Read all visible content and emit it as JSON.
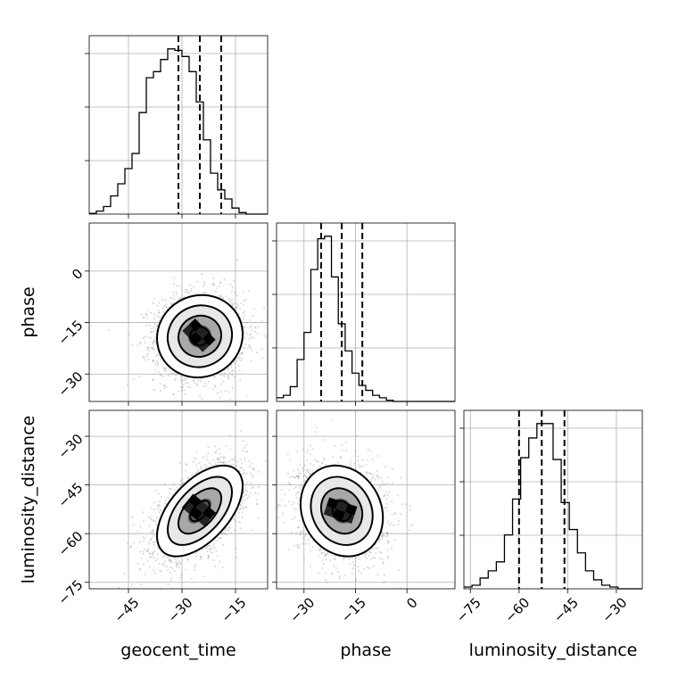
{
  "chart_data": {
    "type": "corner",
    "parameters": [
      {
        "key": "geocent_time",
        "label": "geocent_time",
        "range": [
          -56,
          -6
        ],
        "ticks": [
          -45,
          -30,
          -15
        ],
        "quantiles": [
          -31,
          -25,
          -19
        ],
        "hist_bin_width": 2,
        "hist_counts": [
          0.5,
          2,
          5,
          12,
          20,
          30,
          40,
          67,
          90,
          94,
          102,
          109,
          108,
          104,
          94,
          74,
          49,
          27,
          16,
          10,
          4,
          1,
          0,
          0,
          0
        ]
      },
      {
        "key": "phase",
        "label": "phase",
        "range": [
          -38,
          14
        ],
        "ticks": [
          -30,
          -15,
          0
        ],
        "quantiles": [
          -25,
          -19,
          -13
        ],
        "hist_bin_width": 2,
        "hist_counts": [
          3,
          5,
          12,
          34,
          56,
          107,
          132,
          134,
          101,
          63,
          41,
          23,
          13,
          9,
          5,
          3,
          1,
          0,
          0,
          0,
          0,
          0,
          0,
          0,
          0,
          0
        ]
      },
      {
        "key": "luminosity_distance",
        "label": "luminosity_distance",
        "range": [
          -77,
          -22
        ],
        "ticks": [
          -75,
          -60,
          -45,
          -30
        ],
        "quantiles": [
          -60,
          -53,
          -46
        ],
        "hist_bin_width": 2.5,
        "hist_counts": [
          1,
          2,
          6,
          10,
          15,
          30,
          50,
          73,
          84,
          92,
          92,
          72,
          48,
          33,
          20,
          10,
          5,
          2,
          1,
          0,
          0,
          0
        ]
      }
    ],
    "correlations": {
      "geocent_time|phase": 0.05,
      "geocent_time|luminosity_distance": 0.55,
      "phase|luminosity_distance": -0.15
    },
    "diag_ticks_relative": [
      0.3,
      0.6,
      0.9
    ],
    "grid": true
  }
}
